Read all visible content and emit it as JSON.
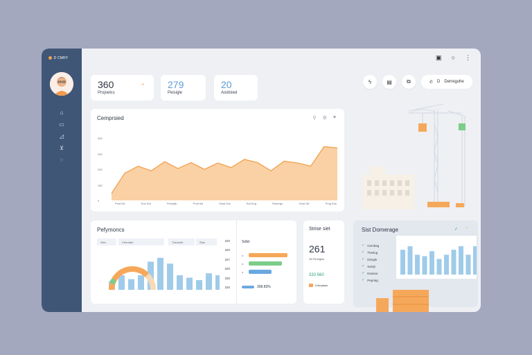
{
  "brand": {
    "name": "D CMRY"
  },
  "sidebar": {
    "items": [
      {
        "icon": "home-icon"
      },
      {
        "icon": "folder-icon"
      },
      {
        "icon": "chart-icon"
      },
      {
        "icon": "cart-icon"
      },
      {
        "icon": "chat-icon"
      }
    ]
  },
  "window_controls": [
    "calendar-icon",
    "circle-icon",
    "more-icon"
  ],
  "toolbar": {
    "pill_text": "Derreguhe",
    "pill_letter": "D"
  },
  "stats": [
    {
      "value": "360",
      "label": "Projoelcs",
      "accent": "#f3a34c"
    },
    {
      "value": "279",
      "label": "Peisigle",
      "accent": "#5e9bd6"
    },
    {
      "value": "20",
      "label": "Aoidsted",
      "accent": "#5e9bd6"
    }
  ],
  "area_chart": {
    "title": "Cemprsied",
    "chart_data": {
      "type": "area",
      "ytick_labels": [
        "300",
        "250",
        "200",
        "150",
        "0"
      ],
      "xtick_labels": [
        "Pmd Ilid",
        "Enb Eat",
        "Perdejib",
        "Pmd Ilid",
        "Mmd Dat",
        "Eat Eng",
        "Reserge",
        "Ordd Jitt",
        "Pmg Eds"
      ],
      "values": [
        115,
        160,
        175,
        165,
        185,
        170,
        183,
        168,
        182,
        172,
        190,
        183,
        165,
        186,
        182,
        175,
        218,
        215
      ],
      "ylim": [
        100,
        240
      ],
      "color": "#f8c995"
    }
  },
  "performance": {
    "title": "Pefymoncs",
    "tags": [
      "Slee",
      "Cherdate",
      "Theracile",
      "Slde"
    ],
    "scale": [
      "320",
      "320",
      "327",
      "320",
      "330",
      "320"
    ],
    "chart_data": {
      "type": "bar",
      "values": [
        18,
        30,
        22,
        30,
        58,
        66,
        54,
        30,
        25,
        20,
        34,
        30,
        30,
        40,
        58
      ],
      "ylim": [
        0,
        80
      ],
      "color": "#9fcbea"
    },
    "gauge_value": 0.75,
    "side_title": "Sdid",
    "hbars": [
      {
        "value": 0.85,
        "color": "#f6a85a"
      },
      {
        "value": 0.72,
        "color": "#7ccd8a"
      },
      {
        "value": 0.5,
        "color": "#6aa8e0"
      }
    ],
    "hbar_footer": "308.83%"
  },
  "site_stat": {
    "title": "Strise siet",
    "value": "261",
    "sub": "Sli Pereigles",
    "metric": "333 560",
    "footer": "Dirtegfaas"
  },
  "site_coverage": {
    "title": "Sist Domerage",
    "checklist": [
      "Cembag",
      "Thetiug",
      "Dimgle",
      "Samjt",
      "Dsasee",
      "Pepriag"
    ],
    "chart_data": {
      "type": "bar",
      "values": [
        35,
        40,
        28,
        26,
        33,
        22,
        28,
        35,
        40,
        28,
        40
      ],
      "ylim": [
        0,
        45
      ],
      "color": "#9fcbea"
    }
  }
}
